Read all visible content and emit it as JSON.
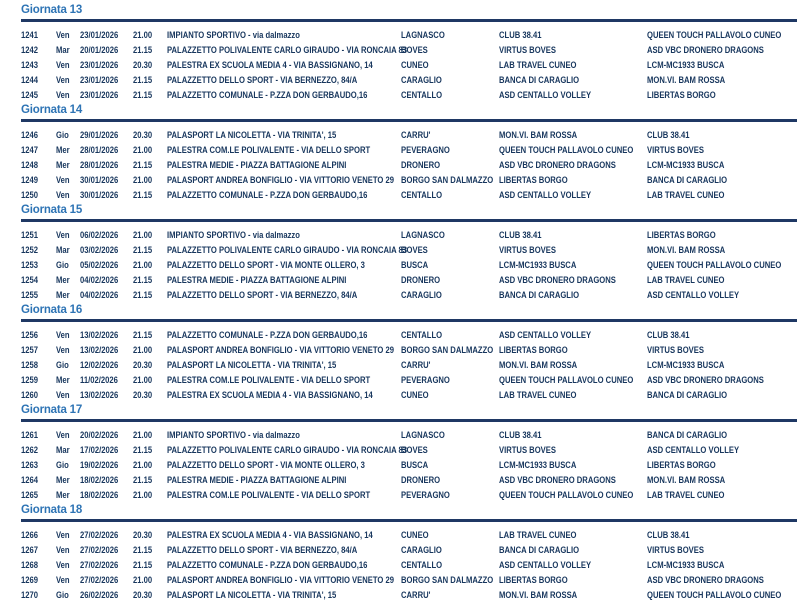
{
  "colors": {
    "title_blue": "#2E74B5",
    "rule_navy": "#1F3864",
    "text_navy": "#17365D",
    "page_bg": "#FFFFFF"
  },
  "sections": [
    {
      "title": "Giornata 13",
      "rows": [
        {
          "id": "1241",
          "day": "Ven",
          "date": "23/01/2026",
          "time": "21.00",
          "venue": "IMPIANTO SPORTIVO - via dalmazzo",
          "city": "LAGNASCO",
          "home": "CLUB 38.41",
          "away": "QUEEN TOUCH PALLAVOLO CUNEO"
        },
        {
          "id": "1242",
          "day": "Mar",
          "date": "20/01/2026",
          "time": "21.15",
          "venue": "PALAZZETTO POLIVALENTE CARLO GIRAUDO - VIA RONCAIA 83",
          "city": "BOVES",
          "home": "VIRTUS BOVES",
          "away": "ASD VBC DRONERO DRAGONS"
        },
        {
          "id": "1243",
          "day": "Ven",
          "date": "23/01/2026",
          "time": "20.30",
          "venue": "PALESTRA EX SCUOLA MEDIA 4 - VIA BASSIGNANO, 14",
          "city": "CUNEO",
          "home": "LAB TRAVEL CUNEO",
          "away": "LCM-MC1933 BUSCA"
        },
        {
          "id": "1244",
          "day": "Ven",
          "date": "23/01/2026",
          "time": "21.15",
          "venue": "PALAZZETTO DELLO SPORT - VIA BERNEZZO, 84/A",
          "city": "CARAGLIO",
          "home": "BANCA DI CARAGLIO",
          "away": "MON.VI. BAM ROSSA"
        },
        {
          "id": "1245",
          "day": "Ven",
          "date": "23/01/2026",
          "time": "21.15",
          "venue": "PALAZZETTO COMUNALE - P.ZZA DON GERBAUDO,16",
          "city": "CENTALLO",
          "home": "ASD CENTALLO VOLLEY",
          "away": "LIBERTAS BORGO"
        }
      ]
    },
    {
      "title": "Giornata 14",
      "rows": [
        {
          "id": "1246",
          "day": "Gio",
          "date": "29/01/2026",
          "time": "20.30",
          "venue": "PALASPORT LA NICOLETTA - VIA TRINITA', 15",
          "city": "CARRU'",
          "home": "MON.VI. BAM ROSSA",
          "away": "CLUB 38.41"
        },
        {
          "id": "1247",
          "day": "Mer",
          "date": "28/01/2026",
          "time": "21.00",
          "venue": "PALESTRA COM.LE POLIVALENTE - VIA DELLO SPORT",
          "city": "PEVERAGNO",
          "home": "QUEEN TOUCH PALLAVOLO CUNEO",
          "away": "VIRTUS BOVES"
        },
        {
          "id": "1248",
          "day": "Mer",
          "date": "28/01/2026",
          "time": "21.15",
          "venue": "PALESTRA MEDIE - PIAZZA BATTAGIONE ALPINI",
          "city": "DRONERO",
          "home": "ASD VBC DRONERO DRAGONS",
          "away": "LCM-MC1933 BUSCA"
        },
        {
          "id": "1249",
          "day": "Ven",
          "date": "30/01/2026",
          "time": "21.00",
          "venue": "PALASPORT ANDREA BONFIGLIO - VIA VITTORIO VENETO 29",
          "city": "BORGO SAN DALMAZZO",
          "home": "LIBERTAS BORGO",
          "away": "BANCA DI CARAGLIO"
        },
        {
          "id": "1250",
          "day": "Ven",
          "date": "30/01/2026",
          "time": "21.15",
          "venue": "PALAZZETTO COMUNALE - P.ZZA DON GERBAUDO,16",
          "city": "CENTALLO",
          "home": "ASD CENTALLO VOLLEY",
          "away": "LAB TRAVEL CUNEO"
        }
      ]
    },
    {
      "title": "Giornata 15",
      "rows": [
        {
          "id": "1251",
          "day": "Ven",
          "date": "06/02/2026",
          "time": "21.00",
          "venue": "IMPIANTO SPORTIVO - via dalmazzo",
          "city": "LAGNASCO",
          "home": "CLUB 38.41",
          "away": "LIBERTAS BORGO"
        },
        {
          "id": "1252",
          "day": "Mar",
          "date": "03/02/2026",
          "time": "21.15",
          "venue": "PALAZZETTO POLIVALENTE CARLO GIRAUDO - VIA RONCAIA 83",
          "city": "BOVES",
          "home": "VIRTUS BOVES",
          "away": "MON.VI. BAM ROSSA"
        },
        {
          "id": "1253",
          "day": "Gio",
          "date": "05/02/2026",
          "time": "21.00",
          "venue": "PALAZZETTO DELLO SPORT - VIA MONTE OLLERO, 3",
          "city": "BUSCA",
          "home": "LCM-MC1933 BUSCA",
          "away": "QUEEN TOUCH PALLAVOLO CUNEO"
        },
        {
          "id": "1254",
          "day": "Mer",
          "date": "04/02/2026",
          "time": "21.15",
          "venue": "PALESTRA MEDIE - PIAZZA BATTAGIONE ALPINI",
          "city": "DRONERO",
          "home": "ASD VBC DRONERO DRAGONS",
          "away": "LAB TRAVEL CUNEO"
        },
        {
          "id": "1255",
          "day": "Mer",
          "date": "04/02/2026",
          "time": "21.15",
          "venue": "PALAZZETTO DELLO SPORT - VIA BERNEZZO, 84/A",
          "city": "CARAGLIO",
          "home": "BANCA DI CARAGLIO",
          "away": "ASD CENTALLO VOLLEY"
        }
      ]
    },
    {
      "title": "Giornata 16",
      "rows": [
        {
          "id": "1256",
          "day": "Ven",
          "date": "13/02/2026",
          "time": "21.15",
          "venue": "PALAZZETTO COMUNALE - P.ZZA DON GERBAUDO,16",
          "city": "CENTALLO",
          "home": "ASD CENTALLO VOLLEY",
          "away": "CLUB 38.41"
        },
        {
          "id": "1257",
          "day": "Ven",
          "date": "13/02/2026",
          "time": "21.00",
          "venue": "PALASPORT ANDREA BONFIGLIO - VIA VITTORIO VENETO 29",
          "city": "BORGO SAN DALMAZZO",
          "home": "LIBERTAS BORGO",
          "away": "VIRTUS BOVES"
        },
        {
          "id": "1258",
          "day": "Gio",
          "date": "12/02/2026",
          "time": "20.30",
          "venue": "PALASPORT LA NICOLETTA - VIA TRINITA', 15",
          "city": "CARRU'",
          "home": "MON.VI. BAM ROSSA",
          "away": "LCM-MC1933 BUSCA"
        },
        {
          "id": "1259",
          "day": "Mer",
          "date": "11/02/2026",
          "time": "21.00",
          "venue": "PALESTRA COM.LE POLIVALENTE - VIA DELLO SPORT",
          "city": "PEVERAGNO",
          "home": "QUEEN TOUCH PALLAVOLO CUNEO",
          "away": "ASD VBC DRONERO DRAGONS"
        },
        {
          "id": "1260",
          "day": "Ven",
          "date": "13/02/2026",
          "time": "20.30",
          "venue": "PALESTRA EX SCUOLA MEDIA 4 - VIA BASSIGNANO, 14",
          "city": "CUNEO",
          "home": "LAB TRAVEL CUNEO",
          "away": "BANCA DI CARAGLIO"
        }
      ]
    },
    {
      "title": "Giornata 17",
      "rows": [
        {
          "id": "1261",
          "day": "Ven",
          "date": "20/02/2026",
          "time": "21.00",
          "venue": "IMPIANTO SPORTIVO - via dalmazzo",
          "city": "LAGNASCO",
          "home": "CLUB 38.41",
          "away": "BANCA DI CARAGLIO"
        },
        {
          "id": "1262",
          "day": "Mar",
          "date": "17/02/2026",
          "time": "21.15",
          "venue": "PALAZZETTO POLIVALENTE CARLO GIRAUDO - VIA RONCAIA 83",
          "city": "BOVES",
          "home": "VIRTUS BOVES",
          "away": "ASD CENTALLO VOLLEY"
        },
        {
          "id": "1263",
          "day": "Gio",
          "date": "19/02/2026",
          "time": "21.00",
          "venue": "PALAZZETTO DELLO SPORT - VIA MONTE OLLERO, 3",
          "city": "BUSCA",
          "home": "LCM-MC1933 BUSCA",
          "away": "LIBERTAS BORGO"
        },
        {
          "id": "1264",
          "day": "Mer",
          "date": "18/02/2026",
          "time": "21.15",
          "venue": "PALESTRA MEDIE - PIAZZA BATTAGIONE ALPINI",
          "city": "DRONERO",
          "home": "ASD VBC DRONERO DRAGONS",
          "away": "MON.VI. BAM ROSSA"
        },
        {
          "id": "1265",
          "day": "Mer",
          "date": "18/02/2026",
          "time": "21.00",
          "venue": "PALESTRA COM.LE POLIVALENTE - VIA DELLO SPORT",
          "city": "PEVERAGNO",
          "home": "QUEEN TOUCH PALLAVOLO CUNEO",
          "away": "LAB TRAVEL CUNEO"
        }
      ]
    },
    {
      "title": "Giornata 18",
      "rows": [
        {
          "id": "1266",
          "day": "Ven",
          "date": "27/02/2026",
          "time": "20.30",
          "venue": "PALESTRA EX SCUOLA MEDIA 4 - VIA BASSIGNANO, 14",
          "city": "CUNEO",
          "home": "LAB TRAVEL CUNEO",
          "away": "CLUB 38.41"
        },
        {
          "id": "1267",
          "day": "Ven",
          "date": "27/02/2026",
          "time": "21.15",
          "venue": "PALAZZETTO DELLO SPORT - VIA BERNEZZO, 84/A",
          "city": "CARAGLIO",
          "home": "BANCA DI CARAGLIO",
          "away": "VIRTUS BOVES"
        },
        {
          "id": "1268",
          "day": "Ven",
          "date": "27/02/2026",
          "time": "21.15",
          "venue": "PALAZZETTO COMUNALE - P.ZZA DON GERBAUDO,16",
          "city": "CENTALLO",
          "home": "ASD CENTALLO VOLLEY",
          "away": "LCM-MC1933 BUSCA"
        },
        {
          "id": "1269",
          "day": "Ven",
          "date": "27/02/2026",
          "time": "21.00",
          "venue": "PALASPORT ANDREA BONFIGLIO - VIA VITTORIO VENETO 29",
          "city": "BORGO SAN DALMAZZO",
          "home": "LIBERTAS BORGO",
          "away": "ASD VBC DRONERO DRAGONS"
        },
        {
          "id": "1270",
          "day": "Gio",
          "date": "26/02/2026",
          "time": "20.30",
          "venue": "PALASPORT LA NICOLETTA - VIA TRINITA', 15",
          "city": "CARRU'",
          "home": "MON.VI. BAM ROSSA",
          "away": "QUEEN TOUCH PALLAVOLO CUNEO"
        }
      ]
    }
  ]
}
